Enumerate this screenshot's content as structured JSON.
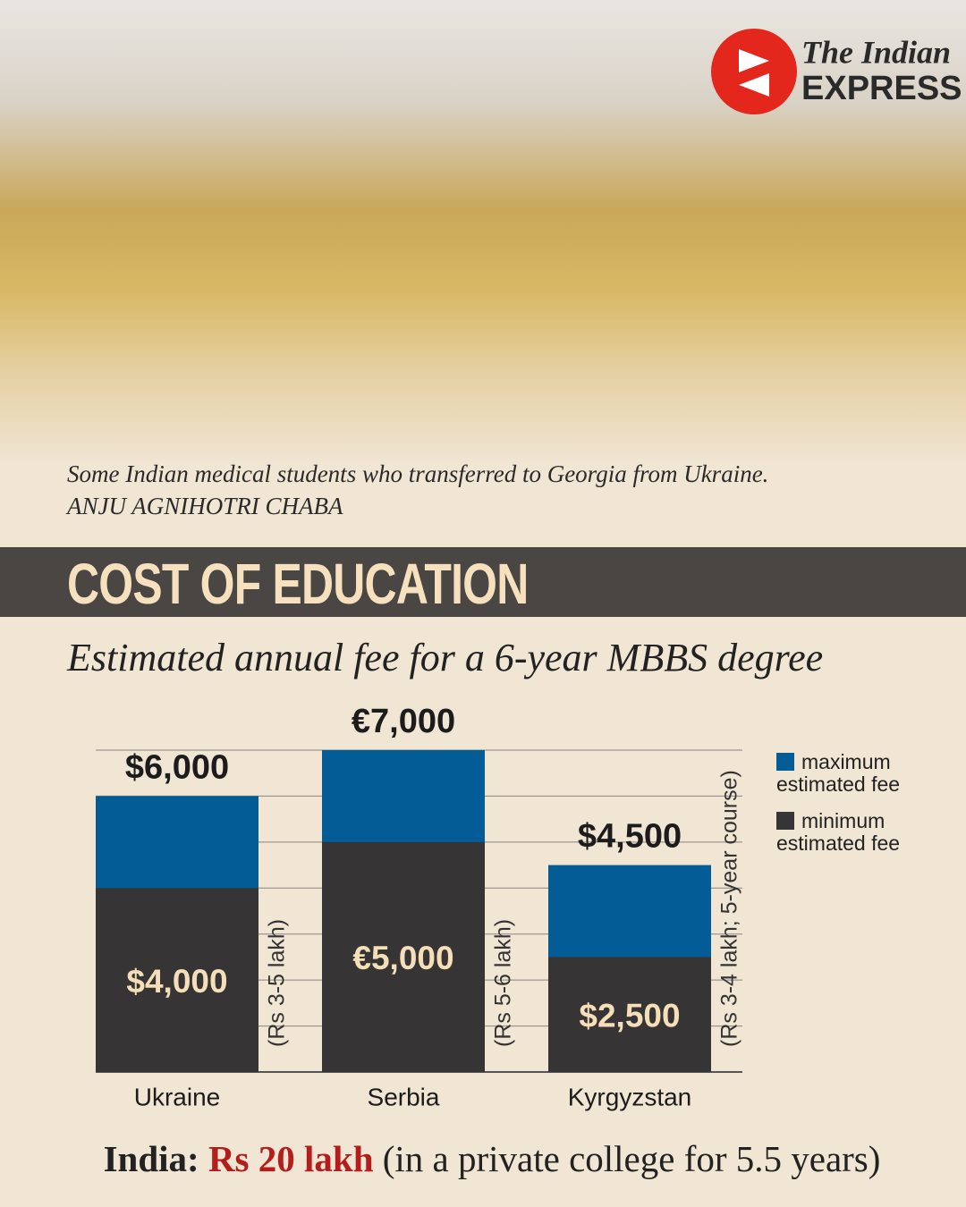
{
  "header": {
    "logo_line1": "The Indian",
    "logo_line2": "EXPRESS"
  },
  "photo": {
    "caption": "Some Indian medical students who transferred to Georgia from Ukraine.",
    "credit": "ANJU AGNIHOTRI CHABA"
  },
  "chart_data": {
    "type": "bar",
    "title": "COST OF EDUCATION",
    "subtitle": "Estimated annual fee for a 6-year MBBS degree",
    "categories": [
      "Ukraine",
      "Serbia",
      "Kyrgyzstan"
    ],
    "series": [
      {
        "name": "maximum estimated fee",
        "color": "#045c96",
        "values": [
          6000,
          7000,
          4500
        ],
        "value_labels": [
          "$6,000",
          "€7,000",
          "$4,500"
        ]
      },
      {
        "name": "minimum estimated fee",
        "color": "#363434",
        "values": [
          4000,
          5000,
          2500
        ],
        "value_labels": [
          "$4,000",
          "€5,000",
          "$2,500"
        ]
      }
    ],
    "annotations": [
      "(Rs 3-5 lakh)",
      "(Rs 5-6 lakh)",
      "(Rs 3-4 lakh; 5-year course)"
    ],
    "ylim": [
      0,
      7000
    ],
    "yticks": [
      1000,
      2000,
      3000,
      4000,
      5000,
      6000,
      7000
    ],
    "grid": true
  },
  "footer": {
    "label": "India:",
    "highlight": "Rs 20 lakh",
    "note": "(in a private college for 5.5 years)"
  }
}
